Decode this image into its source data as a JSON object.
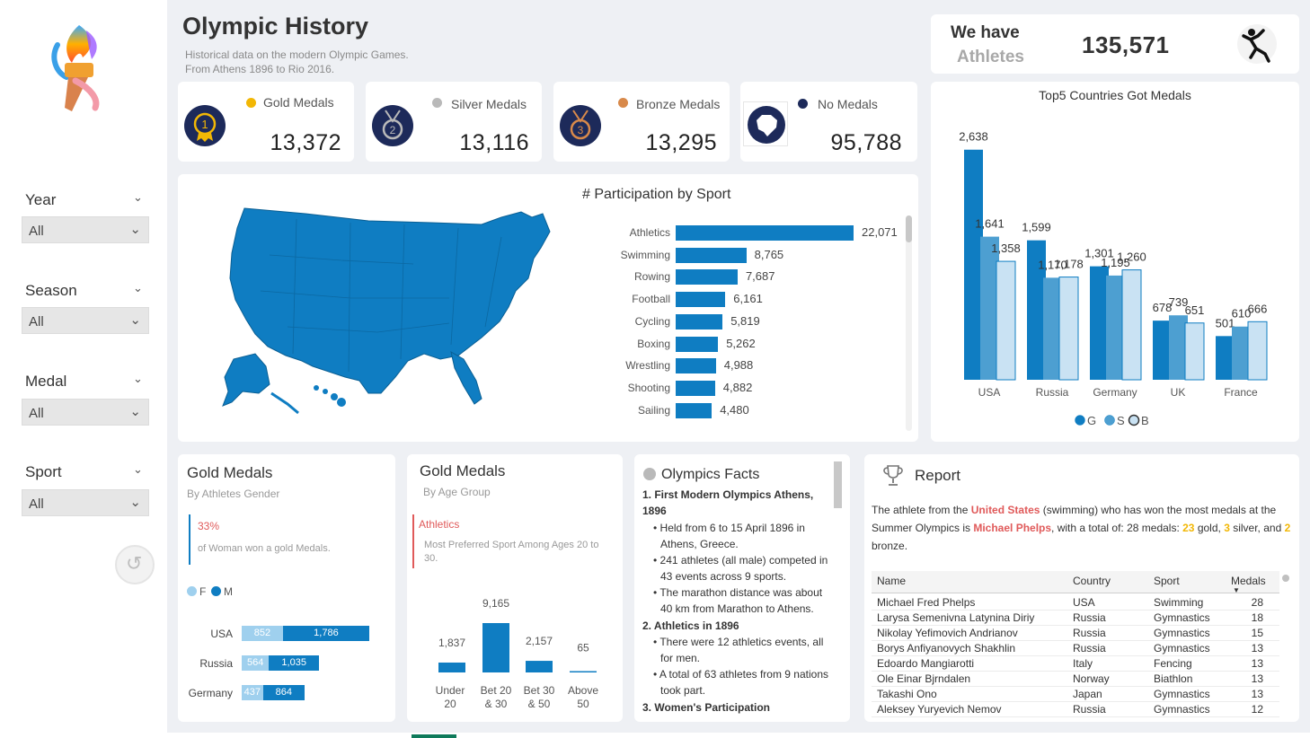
{
  "header": {
    "title": "Olympic History",
    "subtitle_1": "Historical data on the modern Olympic Games.",
    "subtitle_2": "From Athens 1896 to Rio 2016."
  },
  "slicers": [
    {
      "title": "Year",
      "value": "All"
    },
    {
      "title": "Season",
      "value": "All"
    },
    {
      "title": "Medal",
      "value": "All"
    },
    {
      "title": "Sport",
      "value": "All"
    }
  ],
  "kpis": {
    "gold": {
      "label": "Gold Medals",
      "value": "13,372",
      "color": "#f2b705"
    },
    "silver": {
      "label": "Silver Medals",
      "value": "13,116",
      "color": "#b9b9b9"
    },
    "bronze": {
      "label": "Bronze Medals",
      "value": "13,295",
      "color": "#d8894a"
    },
    "none": {
      "label": "No Medals",
      "value": "95,788",
      "color": "#1d2a5a"
    }
  },
  "athletes": {
    "line1": "We have",
    "line2": "Athletes",
    "value": "135,571"
  },
  "participation": {
    "title": "# Participation by Sport",
    "sports": [
      "Athletics",
      "Swimming",
      "Rowing",
      "Football",
      "Cycling",
      "Boxing",
      "Wrestling",
      "Shooting",
      "Sailing"
    ],
    "values": [
      22071,
      8765,
      7687,
      6161,
      5819,
      5262,
      4988,
      4882,
      4480
    ],
    "labels": [
      "22,071",
      "8,765",
      "7,687",
      "6,161",
      "5,819",
      "5,262",
      "4,988",
      "4,882",
      "4,480"
    ]
  },
  "top5": {
    "title": "Top5 Countries Got Medals",
    "legend": [
      "G",
      "S",
      "B"
    ]
  },
  "gender": {
    "title": "Gold Medals",
    "subtitle": "By Athletes Gender",
    "pct": "33%",
    "note": "of Woman won a gold Medals.",
    "legend": [
      "F",
      "M"
    ]
  },
  "age": {
    "title": "Gold Medals",
    "subtitle": "By Age Group",
    "highlight": "Athletics",
    "note": "Most Preferred Sport Among Ages 20 to 30."
  },
  "facts": {
    "title": "Olympics Facts",
    "h1": "1. First Modern Olympics  Athens, 1896",
    "b1": "Held from 6 to 15 April 1896 in Athens, Greece.",
    "b2": "241 athletes (all male) competed in 43 events across 9 sports.",
    "b3": "The marathon distance was about 40 km from Marathon to Athens.",
    "h2": "2. Athletics in 1896",
    "b4": "There were 12 athletics events, all for men.",
    "b5": "A total of 63 athletes from 9 nations took part.",
    "h3": "3. Women's Participation"
  },
  "report": {
    "title": "Report",
    "t1": "The athlete from the ",
    "country": "United States",
    "t2": " (swimming) who has won the most medals at the Summer Olympics is ",
    "name": "Michael Phelps",
    "t3": ", with a total of: 28 medals: ",
    "gold": "23",
    "t4": " gold, ",
    "silver": "3",
    "t5": " silver, and ",
    "bronze": "2",
    "t6": " bronze.",
    "columns": [
      "Name",
      "Country",
      "Sport",
      "Medals"
    ],
    "rows": [
      [
        "Michael Fred Phelps",
        "USA",
        "Swimming",
        "28"
      ],
      [
        "Larysa Semenivna Latynina Diriy",
        "Russia",
        "Gymnastics",
        "18"
      ],
      [
        "Nikolay Yefimovich Andrianov",
        "Russia",
        "Gymnastics",
        "15"
      ],
      [
        "Borys Anfiyanovych Shakhlin",
        "Russia",
        "Gymnastics",
        "13"
      ],
      [
        "Edoardo Mangiarotti",
        "Italy",
        "Fencing",
        "13"
      ],
      [
        "Ole Einar Bjrndalen",
        "Norway",
        "Biathlon",
        "13"
      ],
      [
        "Takashi Ono",
        "Japan",
        "Gymnastics",
        "13"
      ],
      [
        "Aleksey Yuryevich Nemov",
        "Russia",
        "Gymnastics",
        "12"
      ]
    ]
  },
  "chart_data": [
    {
      "type": "bar",
      "title": "Top5 Countries Got Medals",
      "categories": [
        "USA",
        "Russia",
        "Germany",
        "UK",
        "France"
      ],
      "series": [
        {
          "name": "G",
          "values": [
            2638,
            1599,
            1301,
            678,
            501
          ],
          "color": "#0f7dc2"
        },
        {
          "name": "S",
          "values": [
            1641,
            1170,
            1195,
            739,
            610
          ],
          "color": "#4d9fd1"
        },
        {
          "name": "B",
          "values": [
            1358,
            1178,
            1260,
            651,
            666
          ],
          "color": "#c9e2f3"
        }
      ],
      "labels": [
        [
          "2,638",
          "1,599",
          "1,301",
          "678",
          "501"
        ],
        [
          "1,641",
          "1,170",
          "1,195",
          "739",
          "610"
        ],
        [
          "1,358",
          "1,178",
          "1,260",
          "651",
          "666"
        ]
      ],
      "ylim": [
        0,
        2800
      ],
      "legend": "bottom",
      "grid": false
    },
    {
      "type": "bar",
      "title": "Gold Medals",
      "categories": [
        "USA",
        "Russia",
        "Germany"
      ],
      "series": [
        {
          "name": "F",
          "values": [
            852,
            564,
            437
          ],
          "color": "#9fd0ee"
        },
        {
          "name": "M",
          "values": [
            1786,
            1035,
            864
          ],
          "color": "#0f7dc2"
        }
      ],
      "orientation": "horizontal",
      "stacked": true,
      "legend": "top-left"
    },
    {
      "type": "bar",
      "title": "Gold Medals",
      "categories": [
        "Under 20",
        "Bet 20 & 30",
        "Bet 30 & 50",
        "Above 50"
      ],
      "values": [
        1837,
        9165,
        2157,
        65
      ],
      "labels": [
        "1,837",
        "9,165",
        "2,157",
        "65"
      ],
      "color": "#0f7dc2"
    }
  ]
}
